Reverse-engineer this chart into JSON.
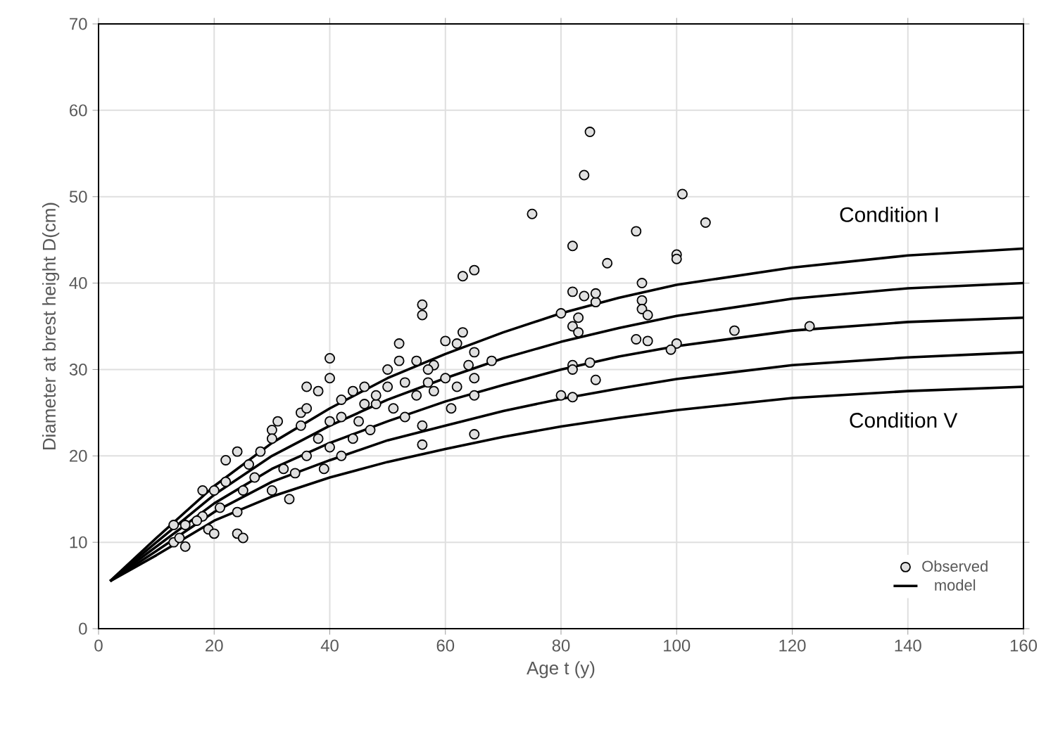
{
  "chart_data": {
    "type": "scatter",
    "xlabel": "Age t (y)",
    "ylabel": "Diameter at brest height D(cm)",
    "xlim": [
      0,
      160
    ],
    "ylim": [
      0,
      70
    ],
    "xticks": [
      0,
      20,
      40,
      60,
      80,
      100,
      120,
      140,
      160
    ],
    "yticks": [
      0,
      10,
      20,
      30,
      40,
      50,
      60,
      70
    ],
    "grid": true,
    "legend": "bottom right",
    "line_style": "solid",
    "annotations": [
      "Condition I",
      "Condition V"
    ],
    "series": [
      {
        "name": "Observed",
        "marker": "circle",
        "color": "#e0e0e0",
        "x": [
          85,
          84,
          75,
          101,
          105,
          93,
          88,
          82,
          100,
          100,
          65,
          63,
          56,
          56,
          40,
          110,
          123,
          94,
          94,
          94,
          95,
          93,
          95,
          100,
          99,
          82,
          84,
          83,
          80,
          86,
          86,
          82,
          83,
          82,
          82,
          80,
          82,
          86,
          85,
          65,
          56,
          56,
          65,
          65,
          64,
          65,
          63,
          60,
          62,
          58,
          55,
          57,
          52,
          52,
          50,
          50,
          48,
          46,
          46,
          44,
          42,
          42,
          40,
          40,
          38,
          36,
          35,
          35,
          38,
          36,
          34,
          30,
          30,
          31,
          28,
          26,
          27,
          25,
          24,
          22,
          22,
          20,
          21,
          24,
          24,
          25,
          18,
          18,
          19,
          17,
          15,
          13,
          13,
          15,
          20,
          14,
          30,
          32,
          33,
          39,
          42,
          44,
          47,
          51,
          53,
          55,
          58,
          60,
          61,
          62,
          68,
          40,
          36,
          45,
          48,
          53,
          57
        ],
        "values": [
          57.5,
          52.5,
          48,
          50.3,
          47,
          46,
          42.3,
          44.3,
          43.3,
          42.8,
          41.5,
          40.8,
          37.5,
          36.3,
          31.3,
          34.5,
          35,
          40,
          38,
          37,
          36.3,
          33.5,
          33.3,
          33,
          32.3,
          39,
          38.5,
          36,
          36.5,
          37.8,
          38.8,
          35,
          34.3,
          30.5,
          30,
          27,
          26.8,
          28.8,
          30.8,
          22.5,
          21.3,
          23.5,
          27,
          29,
          30.5,
          32,
          34.3,
          33.3,
          33,
          30.5,
          31,
          28.5,
          33,
          31,
          30,
          28,
          26,
          28,
          26,
          27.5,
          26.5,
          24.5,
          29,
          24,
          27.5,
          28,
          25,
          23.5,
          22,
          20,
          18,
          23,
          22,
          24,
          20.5,
          19,
          17.5,
          16,
          20.5,
          19.5,
          17,
          16,
          14,
          13.5,
          11,
          10.5,
          16,
          13,
          11.5,
          12.5,
          12,
          12,
          10,
          9.5,
          11,
          10.5,
          16,
          18.5,
          15,
          18.5,
          20,
          22,
          23,
          25.5,
          24.5,
          27,
          27.5,
          29,
          25.5,
          28,
          31,
          21,
          25.5,
          24,
          27,
          28.5,
          30
        ]
      },
      {
        "name": "model",
        "type": "line",
        "color": "#000000",
        "x": [
          2,
          10,
          20,
          30,
          40,
          50,
          60,
          70,
          80,
          90,
          100,
          120,
          140,
          160
        ],
        "values": [
          5.5,
          10.5,
          16.5,
          21.5,
          25.5,
          29,
          31.8,
          34.3,
          36.5,
          38.3,
          39.8,
          41.8,
          43.2,
          44
        ]
      },
      {
        "type": "line",
        "color": "#000000",
        "x": [
          2,
          10,
          20,
          30,
          40,
          50,
          60,
          70,
          80,
          90,
          100,
          120,
          140,
          160
        ],
        "values": [
          5.5,
          10,
          15.5,
          20,
          23.5,
          26.5,
          29,
          31.3,
          33.2,
          34.8,
          36.2,
          38.2,
          39.4,
          40
        ]
      },
      {
        "type": "line",
        "color": "#000000",
        "x": [
          2,
          10,
          20,
          30,
          40,
          50,
          60,
          70,
          80,
          90,
          100,
          120,
          140,
          160
        ],
        "values": [
          5.5,
          9.5,
          14.5,
          18.5,
          21.5,
          24,
          26.3,
          28.2,
          30,
          31.5,
          32.7,
          34.5,
          35.5,
          36
        ]
      },
      {
        "type": "line",
        "color": "#000000",
        "x": [
          2,
          10,
          20,
          30,
          40,
          50,
          60,
          70,
          80,
          90,
          100,
          120,
          140,
          160
        ],
        "values": [
          5.5,
          9,
          13.5,
          17,
          19.5,
          21.8,
          23.5,
          25.2,
          26.6,
          27.8,
          28.9,
          30.5,
          31.4,
          32
        ]
      },
      {
        "type": "line",
        "color": "#000000",
        "x": [
          2,
          10,
          20,
          30,
          40,
          50,
          60,
          70,
          80,
          90,
          100,
          120,
          140,
          160
        ],
        "values": [
          5.5,
          8.5,
          12.5,
          15.3,
          17.5,
          19.3,
          20.8,
          22.2,
          23.4,
          24.4,
          25.3,
          26.7,
          27.5,
          28
        ]
      }
    ]
  }
}
